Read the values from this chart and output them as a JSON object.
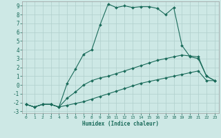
{
  "xlabel": "Humidex (Indice chaleur)",
  "background_color": "#cde8e5",
  "grid_color": "#b0cfcc",
  "line_color": "#1a6b5a",
  "xlim": [
    -0.5,
    23.5
  ],
  "ylim": [
    -3.2,
    9.5
  ],
  "xticks": [
    0,
    1,
    2,
    3,
    4,
    5,
    6,
    7,
    8,
    9,
    10,
    11,
    12,
    13,
    14,
    15,
    16,
    17,
    18,
    19,
    20,
    21,
    22,
    23
  ],
  "yticks": [
    -3,
    -2,
    -1,
    0,
    1,
    2,
    3,
    4,
    5,
    6,
    7,
    8,
    9
  ],
  "curve1_x": [
    0,
    1,
    2,
    3,
    4,
    5,
    6,
    7,
    8,
    9,
    10,
    11,
    12,
    13,
    14,
    15,
    16,
    17,
    18,
    19,
    20,
    21,
    22,
    23
  ],
  "curve1_y": [
    -2.2,
    -2.5,
    -2.2,
    -2.2,
    -2.5,
    -2.3,
    -2.1,
    -1.9,
    -1.6,
    -1.3,
    -1.0,
    -0.7,
    -0.4,
    -0.1,
    0.2,
    0.4,
    0.6,
    0.8,
    1.0,
    1.2,
    1.4,
    1.6,
    0.5,
    0.5
  ],
  "curve2_x": [
    0,
    1,
    2,
    3,
    4,
    5,
    6,
    7,
    8,
    9,
    10,
    11,
    12,
    13,
    14,
    15,
    16,
    17,
    18,
    19,
    20,
    21,
    22,
    23
  ],
  "curve2_y": [
    -2.2,
    -2.5,
    -2.2,
    -2.2,
    -2.5,
    -1.5,
    -0.8,
    0.0,
    0.5,
    0.8,
    1.0,
    1.3,
    1.6,
    1.9,
    2.2,
    2.5,
    2.8,
    3.0,
    3.2,
    3.4,
    3.3,
    3.2,
    1.0,
    0.5
  ],
  "curve3_x": [
    0,
    1,
    2,
    3,
    4,
    5,
    6,
    7,
    8,
    9,
    10,
    11,
    12,
    13,
    14,
    15,
    16,
    17,
    18,
    19,
    20,
    21,
    22,
    23
  ],
  "curve3_y": [
    -2.2,
    -2.5,
    -2.2,
    -2.2,
    -2.5,
    0.2,
    1.8,
    3.5,
    4.0,
    6.8,
    9.2,
    8.8,
    9.0,
    8.8,
    8.9,
    8.9,
    8.7,
    8.0,
    8.8,
    4.5,
    3.2,
    3.0,
    1.0,
    0.5
  ]
}
